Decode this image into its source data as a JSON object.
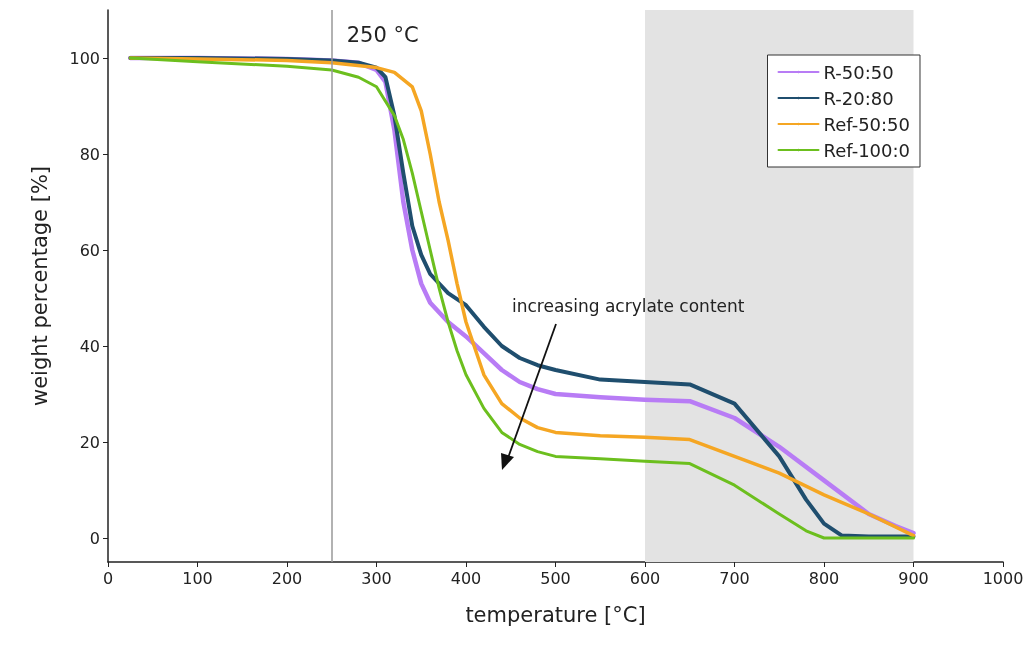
{
  "chart_data": {
    "type": "line",
    "xlabel": "temperature [°C]",
    "ylabel": "weight percentage [%]",
    "xlim": [
      0,
      1000
    ],
    "xticks": [
      0,
      100,
      200,
      300,
      400,
      500,
      600,
      700,
      800,
      900,
      1000
    ],
    "ylim": [
      -5,
      110
    ],
    "yticks": [
      0,
      20,
      40,
      60,
      80,
      100
    ],
    "grid": false,
    "legend": "top right",
    "marker": "none",
    "line_style": "solid",
    "series": [
      {
        "name": "R-50:50",
        "color": "#b87cf5",
        "x": [
          25,
          100,
          200,
          250,
          280,
          300,
          310,
          320,
          330,
          340,
          350,
          360,
          380,
          400,
          420,
          440,
          460,
          480,
          500,
          550,
          600,
          650,
          700,
          750,
          800,
          850,
          880,
          900
        ],
        "values": [
          100,
          100,
          99.8,
          99.5,
          99,
          97.5,
          95,
          85,
          70,
          60,
          53,
          49,
          45,
          42,
          38.5,
          35,
          32.5,
          31,
          30,
          29.3,
          28.8,
          28.5,
          25,
          19,
          12,
          5,
          2.5,
          1
        ]
      },
      {
        "name": "R-20:80",
        "color": "#1f4e6e",
        "x": [
          25,
          100,
          200,
          250,
          280,
          300,
          310,
          320,
          330,
          340,
          350,
          360,
          380,
          400,
          420,
          440,
          460,
          480,
          500,
          550,
          600,
          650,
          700,
          750,
          780,
          800,
          820,
          850,
          900
        ],
        "values": [
          100,
          100,
          99.8,
          99.5,
          99,
          98,
          96,
          88,
          76,
          65,
          59,
          55,
          51,
          48.5,
          44,
          40,
          37.5,
          36,
          35,
          33,
          32.5,
          32,
          28,
          17,
          8,
          3,
          0.5,
          0.3,
          0.3
        ]
      },
      {
        "name": "Ref-50:50",
        "color": "#f5a623",
        "x": [
          25,
          100,
          200,
          250,
          300,
          320,
          340,
          350,
          360,
          370,
          380,
          390,
          400,
          420,
          440,
          460,
          480,
          500,
          550,
          600,
          650,
          700,
          750,
          800,
          850,
          900
        ],
        "values": [
          100,
          99.8,
          99.5,
          99,
          98,
          97,
          94,
          89,
          80,
          70,
          62,
          53,
          45,
          34,
          28,
          25,
          23,
          22,
          21.3,
          21,
          20.5,
          17,
          13.5,
          9,
          5,
          0.5
        ]
      },
      {
        "name": "Ref-100:0",
        "color": "#6cbf1e",
        "x": [
          25,
          100,
          200,
          250,
          280,
          300,
          320,
          330,
          340,
          350,
          360,
          370,
          380,
          390,
          400,
          420,
          440,
          460,
          480,
          500,
          550,
          600,
          650,
          700,
          750,
          780,
          800,
          850,
          900
        ],
        "values": [
          100,
          99.2,
          98.3,
          97.5,
          96,
          94,
          88,
          83,
          76,
          68,
          60,
          52,
          45,
          39,
          34,
          27,
          22,
          19.5,
          18,
          17,
          16.5,
          16,
          15.5,
          11,
          5,
          1.5,
          0,
          0,
          0
        ]
      }
    ],
    "ref_lines": [
      {
        "axis": "x",
        "value": 250,
        "label": "250 °C",
        "color": "#999999"
      }
    ],
    "bands": [
      {
        "axis": "x",
        "from": 600,
        "to": 900,
        "color": "#e3e3e3"
      }
    ],
    "annotations": [
      "increasing acrylate content"
    ]
  }
}
